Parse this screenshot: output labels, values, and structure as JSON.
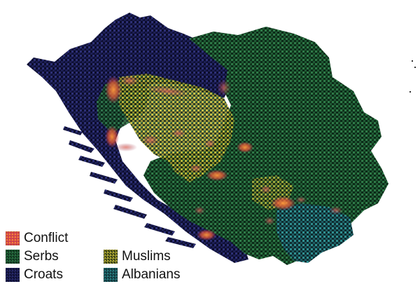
{
  "colors": {
    "background": "#ffffff",
    "conflict": "#e0553a",
    "conflict_hot": "#ff9a3c",
    "serbs": "#1f5a34",
    "serbs_light": "#2e7a48",
    "croats": "#1d1f55",
    "croats_light": "#2d3076",
    "muslims": "#8f8a2a",
    "muslims_light": "#c2ba3a",
    "albanians": "#1d5d63",
    "albanians_light": "#2f8f90"
  },
  "legend": {
    "conflict": {
      "label": "Conflict",
      "icon": "conflict-swatch"
    },
    "serbs": {
      "label": "Serbs",
      "icon": "serbs-swatch"
    },
    "croats": {
      "label": "Croats",
      "icon": "croats-swatch"
    },
    "muslims": {
      "label": "Muslims",
      "icon": "muslims-swatch"
    },
    "albanians": {
      "label": "Albanians",
      "icon": "albanians-swatch"
    }
  }
}
